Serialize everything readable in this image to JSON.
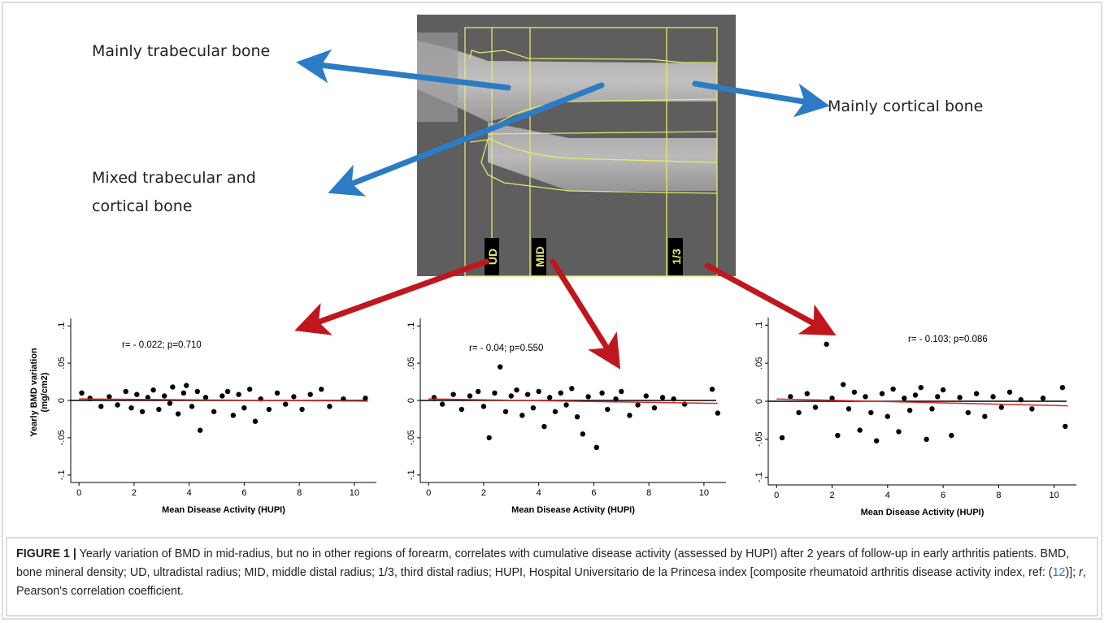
{
  "annotations": {
    "trabecular": "Mainly trabecular bone",
    "cortical": "Mainly cortical bone",
    "mixed_1": "Mixed trabecular and",
    "mixed_2": "cortical bone"
  },
  "regions": [
    "UD",
    "MID",
    "1/3"
  ],
  "chart_data": [
    {
      "type": "scatter",
      "annotation": "r= - 0.022; p=0.710",
      "xlabel": "Mean Disease Activity (HUPI)",
      "ylabel": [
        "Yearly BMD variation",
        "(mg/cm2)"
      ],
      "color": "#000000",
      "x": [
        0.1,
        0.4,
        0.8,
        1.1,
        1.4,
        1.7,
        1.9,
        2.1,
        2.3,
        2.5,
        2.7,
        2.9,
        3.1,
        3.3,
        3.4,
        3.6,
        3.8,
        3.9,
        4.1,
        4.3,
        4.4,
        4.6,
        4.9,
        5.2,
        5.4,
        5.6,
        5.8,
        6.0,
        6.2,
        6.4,
        6.6,
        6.9,
        7.2,
        7.5,
        7.8,
        8.1,
        8.4,
        8.8,
        9.1,
        9.6,
        10.4
      ],
      "values": [
        0.01,
        0.003,
        -0.008,
        0.005,
        -0.006,
        0.012,
        -0.01,
        0.008,
        -0.015,
        0.004,
        0.014,
        -0.012,
        0.006,
        -0.004,
        0.018,
        -0.018,
        0.01,
        0.02,
        -0.008,
        0.012,
        -0.04,
        0.004,
        -0.015,
        0.006,
        0.012,
        -0.02,
        0.008,
        -0.01,
        0.015,
        -0.028,
        0.002,
        -0.012,
        0.01,
        -0.005,
        0.005,
        -0.012,
        0.008,
        0.015,
        -0.008,
        0.002,
        0.003
      ],
      "fit_line": {
        "x": [
          0,
          10.5
        ],
        "y": [
          0.002,
          -0.001
        ],
        "color": "#d62728"
      },
      "reference_line": {
        "value": 0,
        "color": "#000000"
      },
      "xlim": [
        -0.3,
        10.8
      ],
      "ylim": [
        -0.11,
        0.11
      ],
      "xticks": [
        0,
        2,
        4,
        6,
        8,
        10
      ],
      "yticks": [
        {
          "value": -0.1,
          "label": "-.1"
        },
        {
          "value": -0.05,
          "label": "-.05"
        },
        0,
        {
          "value": 0.05,
          "label": ".05"
        },
        {
          "value": 0.1,
          "label": ".1"
        }
      ]
    },
    {
      "type": "scatter",
      "annotation": "r= - 0.04; p=0.550",
      "xlabel": "Mean Disease Activity (HUPI)",
      "color": "#000000",
      "x": [
        0.2,
        0.5,
        0.9,
        1.2,
        1.5,
        1.8,
        2.0,
        2.2,
        2.4,
        2.6,
        2.8,
        3.0,
        3.2,
        3.4,
        3.6,
        3.8,
        4.0,
        4.2,
        4.4,
        4.6,
        4.8,
        5.0,
        5.2,
        5.4,
        5.6,
        5.8,
        6.1,
        6.3,
        6.5,
        6.8,
        7.0,
        7.3,
        7.6,
        7.9,
        8.2,
        8.5,
        8.9,
        9.3,
        10.3,
        10.5
      ],
      "values": [
        0.004,
        -0.005,
        0.008,
        -0.012,
        0.006,
        0.012,
        -0.008,
        -0.05,
        0.01,
        0.045,
        -0.015,
        0.006,
        0.014,
        -0.02,
        0.008,
        -0.01,
        0.012,
        -0.035,
        0.004,
        -0.015,
        0.01,
        -0.006,
        0.016,
        -0.022,
        -0.045,
        0.005,
        -0.063,
        0.01,
        -0.012,
        0.002,
        0.012,
        -0.02,
        -0.006,
        0.006,
        -0.01,
        0.004,
        0.002,
        -0.005,
        0.015,
        -0.017
      ],
      "fit_line": {
        "x": [
          0,
          10.5
        ],
        "y": [
          0.002,
          -0.004
        ],
        "color": "#d62728"
      },
      "reference_line": {
        "value": 0,
        "color": "#000000"
      },
      "xlim": [
        -0.3,
        10.8
      ],
      "ylim": [
        -0.11,
        0.11
      ],
      "xticks": [
        0,
        2,
        4,
        6,
        8,
        10
      ],
      "yticks": [
        {
          "value": -0.1,
          "label": "-.1"
        },
        {
          "value": -0.05,
          "label": "-.05"
        },
        0,
        {
          "value": 0.05,
          "label": ".05"
        },
        {
          "value": 0.1,
          "label": ".1"
        }
      ]
    },
    {
      "type": "scatter",
      "annotation": "r= - 0.103; p=0.086",
      "xlabel": "Mean Disease Activity (HUPI)",
      "color": "#000000",
      "x": [
        0.2,
        0.5,
        0.8,
        1.1,
        1.4,
        1.8,
        2.0,
        2.2,
        2.4,
        2.6,
        2.8,
        3.0,
        3.2,
        3.4,
        3.6,
        3.8,
        4.0,
        4.2,
        4.4,
        4.6,
        4.8,
        5.0,
        5.2,
        5.4,
        5.6,
        5.8,
        6.0,
        6.3,
        6.6,
        6.9,
        7.2,
        7.5,
        7.8,
        8.1,
        8.4,
        8.8,
        9.2,
        9.6,
        10.3,
        10.4
      ],
      "values": [
        -0.048,
        0.006,
        -0.015,
        0.01,
        -0.008,
        0.075,
        0.004,
        -0.045,
        0.022,
        -0.01,
        0.012,
        -0.038,
        0.006,
        -0.015,
        -0.052,
        0.01,
        -0.02,
        0.016,
        -0.04,
        0.004,
        -0.012,
        0.008,
        0.018,
        -0.05,
        -0.01,
        0.006,
        0.015,
        -0.045,
        0.005,
        -0.015,
        0.01,
        -0.02,
        0.006,
        -0.008,
        0.012,
        0.002,
        -0.01,
        0.004,
        0.018,
        -0.033
      ],
      "fit_line": {
        "x": [
          0,
          10.5
        ],
        "y": [
          0.003,
          -0.006
        ],
        "color": "#d62728"
      },
      "reference_line": {
        "value": 0,
        "color": "#000000"
      },
      "xlim": [
        -0.3,
        10.8
      ],
      "ylim": [
        -0.11,
        0.11
      ],
      "xticks": [
        0,
        2,
        4,
        6,
        8,
        10
      ],
      "yticks": [
        {
          "value": -0.1,
          "label": "-.1"
        },
        {
          "value": -0.05,
          "label": "-.05"
        },
        0,
        {
          "value": 0.05,
          "label": ".05"
        },
        {
          "value": 0.1,
          "label": ".1"
        }
      ]
    }
  ],
  "caption": {
    "label": "FIGURE 1 |",
    "text_1": " Yearly variation of BMD in mid-radius, but no in other regions of forearm, correlates with cumulative disease activity (assessed by HUPI) after 2 years of follow-up in early arthritis patients. BMD, bone mineral density; UD, ultradistal radius; MID, middle distal radius; 1/3, third distal radius; HUPI, Hospital Universitario de la Princesa index [composite rheumatoid arthritis disease activity index, ref: (",
    "ref": "12",
    "text_2": ")]; ",
    "r": "r",
    "text_3": ", Pearson's correlation coefficient."
  }
}
